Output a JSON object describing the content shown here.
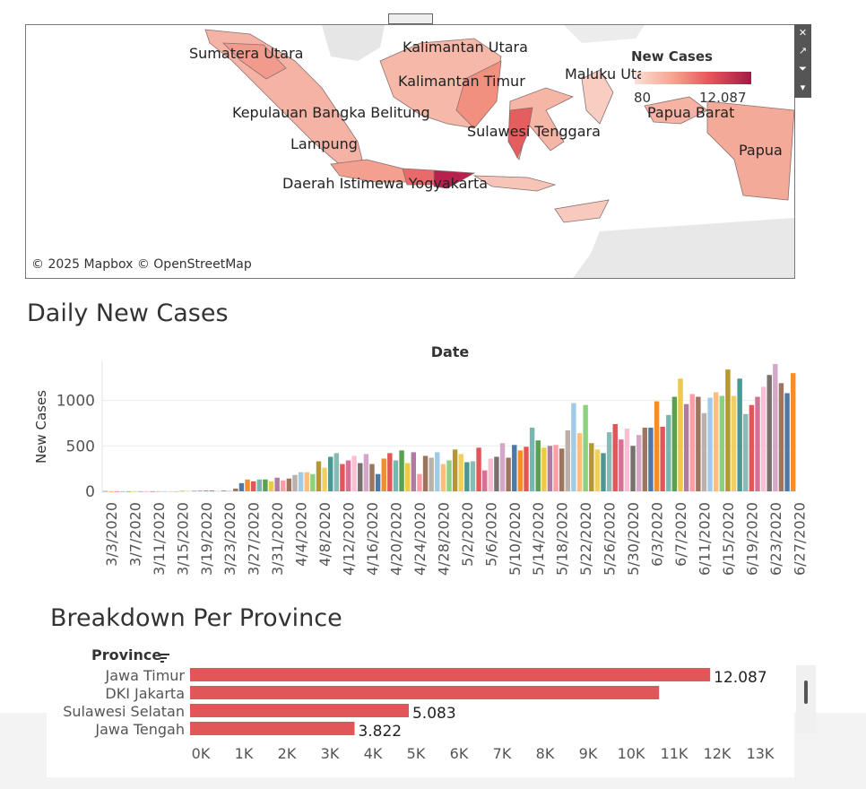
{
  "map": {
    "legend_title": "New Cases",
    "legend_min": "80",
    "legend_max": "12.087",
    "legend_colors": [
      "#fbe0d6",
      "#f4a08c",
      "#e8525a",
      "#c2244f",
      "#a11c46"
    ],
    "attribution": "© 2025 Mapbox © OpenStreetMap",
    "labels": [
      "Sumatera Utara",
      "Kalimantan Utara",
      "Kalimantan Timur",
      "Maluku Utara",
      "Kepulauan Bangka Belitung",
      "Papua Barat",
      "Sulawesi Tenggara",
      "Lampung",
      "Papua",
      "Daerah Istimewa Yogyakarta"
    ],
    "toolbar_icons": [
      "close-icon",
      "external-link-icon",
      "filter-icon",
      "dropdown-arrow-icon"
    ]
  },
  "daily": {
    "title": "Daily New Cases"
  },
  "province": {
    "title": "Breakdown Per Province"
  },
  "chart_data": [
    {
      "type": "bar",
      "title": "",
      "xlabel": "Date",
      "ylabel": "New Cases",
      "ylim": [
        -20,
        1440
      ],
      "yticks": [
        0,
        500,
        1000
      ],
      "grid": true,
      "legend": "none",
      "start_date": "3/2/2020",
      "tick_labels": [
        "3/3/2020",
        "3/7/2020",
        "3/11/2020",
        "3/15/2020",
        "3/19/2020",
        "3/23/2020",
        "3/27/2020",
        "3/31/2020",
        "4/4/2020",
        "4/8/2020",
        "4/12/2020",
        "4/16/2020",
        "4/20/2020",
        "4/24/2020",
        "4/28/2020",
        "5/2/2020",
        "5/6/2020",
        "5/10/2020",
        "5/14/2020",
        "5/18/2020",
        "5/22/2020",
        "5/26/2020",
        "5/30/2020",
        "6/3/2020",
        "6/7/2020",
        "6/11/2020",
        "6/15/2020",
        "6/19/2020",
        "6/23/2020",
        "6/27/2020"
      ],
      "values": [
        2,
        0,
        0,
        0,
        0,
        0,
        0,
        0,
        0,
        0,
        0,
        0,
        0,
        4,
        4,
        5,
        10,
        8,
        10,
        5,
        7,
        5,
        30,
        90,
        130,
        110,
        130,
        130,
        110,
        150,
        120,
        140,
        180,
        210,
        210,
        190,
        330,
        260,
        380,
        420,
        300,
        340,
        390,
        310,
        410,
        300,
        190,
        360,
        420,
        340,
        450,
        310,
        430,
        190,
        390,
        370,
        430,
        300,
        340,
        460,
        410,
        320,
        330,
        480,
        230,
        360,
        380,
        530,
        370,
        510,
        450,
        490,
        700,
        560,
        480,
        500,
        510,
        470,
        670,
        970,
        640,
        950,
        530,
        460,
        420,
        650,
        740,
        570,
        690,
        500,
        620,
        700,
        700,
        990,
        710,
        840,
        1040,
        1240,
        960,
        1070,
        1040,
        860,
        1030,
        1090,
        1050,
        1340,
        1050,
        1240,
        850,
        950,
        1040,
        1150,
        1280,
        1400,
        1190,
        1080,
        1300
      ],
      "colors": [
        "#4e79a7",
        "#f28e2b",
        "#e15759",
        "#76b7b2",
        "#59a14f",
        "#edc948",
        "#b07aa1",
        "#ff9da7",
        "#9c755f",
        "#bab0ac",
        "#a0cbe8",
        "#ffbe7d",
        "#8cd17d",
        "#b6992d",
        "#f1ce63",
        "#499894",
        "#86bcb6",
        "#e15759",
        "#d37295",
        "#fabfd2",
        "#79706e",
        "#d4a6c8",
        "#9d7660"
      ]
    },
    {
      "type": "bar",
      "orientation": "horizontal",
      "title": "",
      "xlabel": "New Cases",
      "ylabel": "Province",
      "xlim": [
        0,
        13500
      ],
      "xticks": [
        "0K",
        "1K",
        "2K",
        "3K",
        "4K",
        "5K",
        "6K",
        "7K",
        "8K",
        "9K",
        "10K",
        "11K",
        "12K",
        "13K"
      ],
      "categories": [
        "Jawa Timur",
        "DKI Jakarta",
        "Sulawesi Selatan",
        "Jawa Tengah"
      ],
      "values": [
        12087,
        10900,
        5083,
        3822
      ],
      "value_labels": [
        "12.087",
        "",
        "5.083",
        "3.822"
      ],
      "bar_color": "#e15759",
      "grid": false
    }
  ]
}
